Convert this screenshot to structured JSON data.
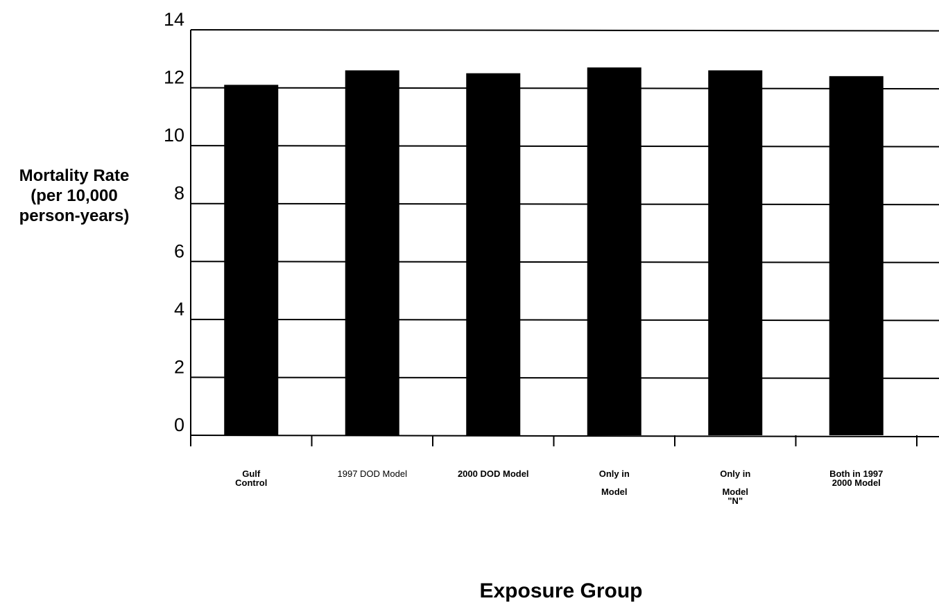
{
  "chart_data": {
    "type": "bar",
    "categories": [
      "Gulf\nControl",
      "1997 DOD Model",
      "2000 DOD Model",
      "Only in\n\nModel",
      "Only in\n\nModel\n\"N\"",
      "Both in 1997\n2000 Model"
    ],
    "values": [
      12.1,
      12.6,
      12.5,
      12.7,
      12.6,
      12.4
    ],
    "title": "",
    "xlabel": "Exposure Group",
    "ylabel": "Mortality Rate\n(per 10,000\nperson-years)",
    "ylim": [
      0,
      14
    ],
    "yticks": [
      "0",
      "2",
      "4",
      "6",
      "8",
      "10",
      "12",
      "14"
    ],
    "grid": true,
    "legend": "none",
    "colors": {
      "bar": "#000000",
      "grid": "#000000",
      "background": "#ffffff"
    }
  }
}
